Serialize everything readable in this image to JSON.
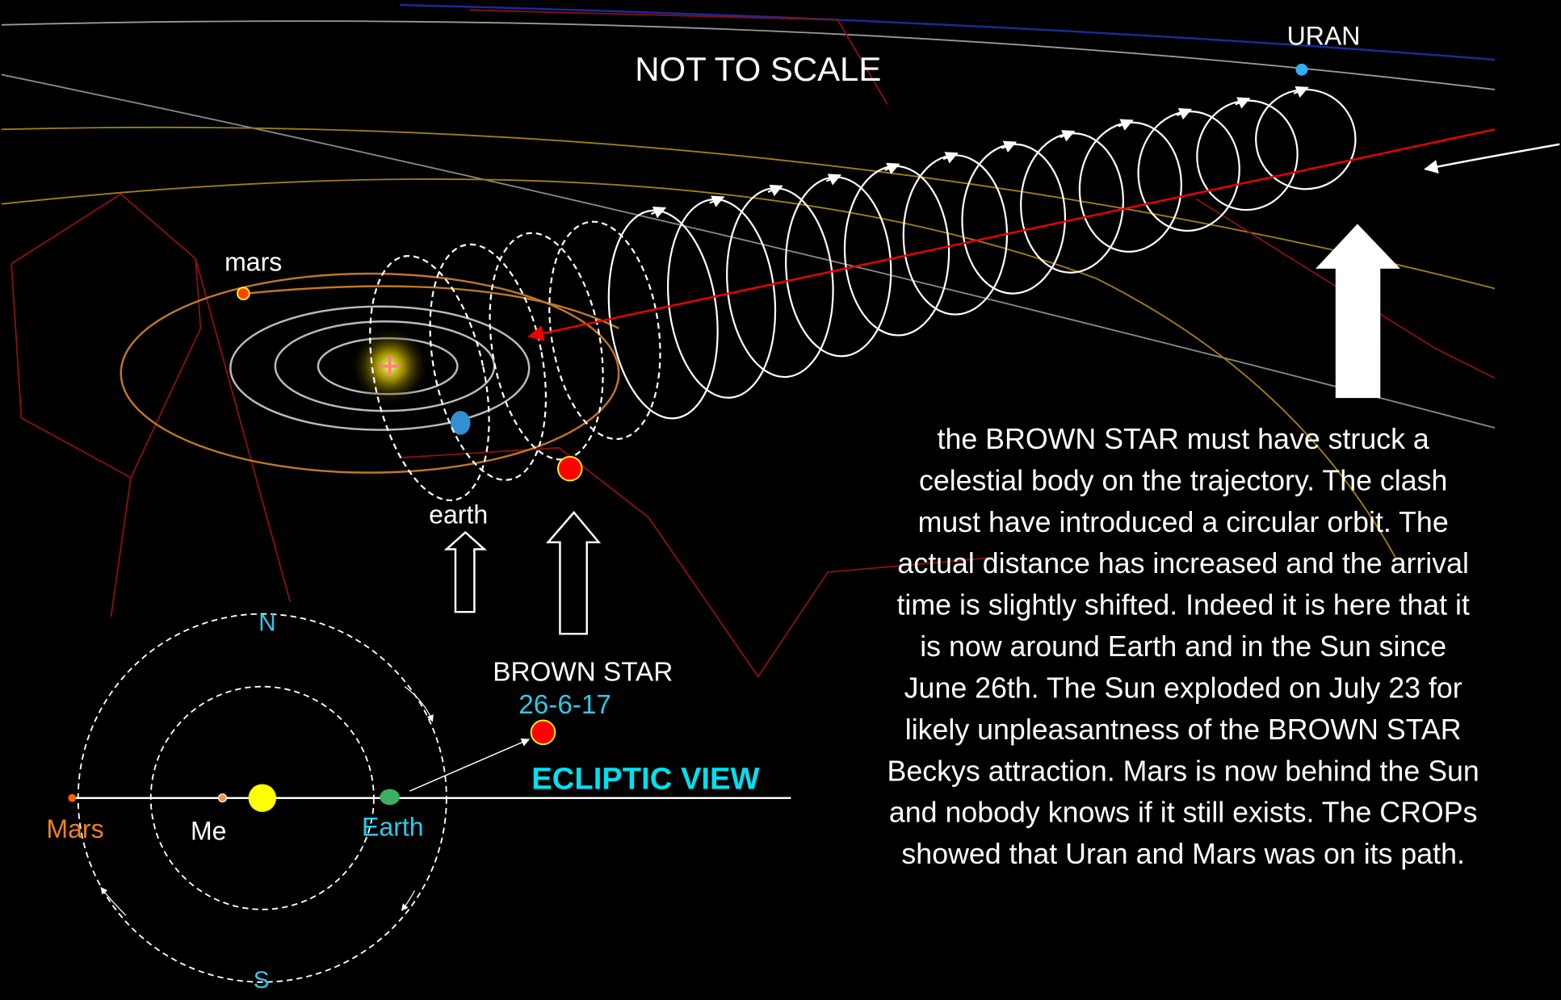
{
  "title": "NOT TO SCALE",
  "labels": {
    "uran": "URAN",
    "mars": "mars",
    "earth": "earth",
    "brown_star": "BROWN STAR",
    "date": "26-6-17"
  },
  "ecliptic": {
    "title": "ECLIPTIC VIEW",
    "north": "N",
    "south": "S",
    "mars": "Mars",
    "mercury": "Me",
    "earth": "Earth"
  },
  "description": [
    "the BROWN STAR must have struck a",
    "celestial body on the trajectory. The clash",
    "must have introduced a circular orbit. The",
    "actual distance has increased and the arrival",
    "time is slightly shifted. Indeed it is here that it",
    "is now around Earth and in the Sun since",
    "June 26th. The Sun exploded on July 23 for",
    "likely unpleasantness of the BROWN STAR",
    "Beckys attraction. Mars is now behind the Sun",
    "and nobody knows if it still exists. The CROPs",
    "showed that Uran and Mars was on its path."
  ]
}
